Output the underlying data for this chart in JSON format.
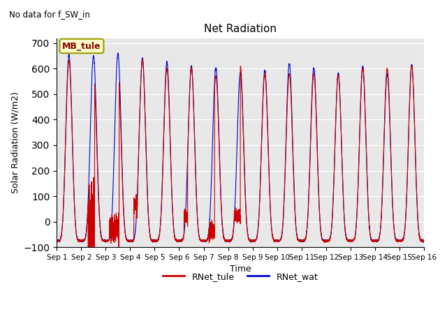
{
  "title": "Net Radiation",
  "subtitle": "No data for f_SW_in",
  "ylabel": "Solar Radiation (W/m2)",
  "xlabel": "Time",
  "ylim": [
    -100,
    720
  ],
  "yticks": [
    -100,
    0,
    100,
    200,
    300,
    400,
    500,
    600,
    700
  ],
  "xtick_labels": [
    "Sep 1",
    "Sep 2",
    "Sep 3",
    "Sep 4",
    "Sep 5",
    "Sep 6",
    "Sep 7",
    "Sep 8",
    "Sep 9",
    "Sep 10",
    "Sep 11",
    "Sep 12",
    "Sep 13",
    "Sep 14",
    "Sep 15",
    "Sep 16"
  ],
  "legend_label_tule": "RNet_tule",
  "legend_label_wat": "RNet_wat",
  "color_tule": "#cc0000",
  "color_wat": "#0000cc",
  "legend_box_text": "MB_tule",
  "legend_box_facecolor": "#ffffcc",
  "legend_box_edgecolor": "#999900",
  "bg_color": "#e8e8e8",
  "n_days": 15,
  "pts_per_day": 288,
  "night_val": -75
}
